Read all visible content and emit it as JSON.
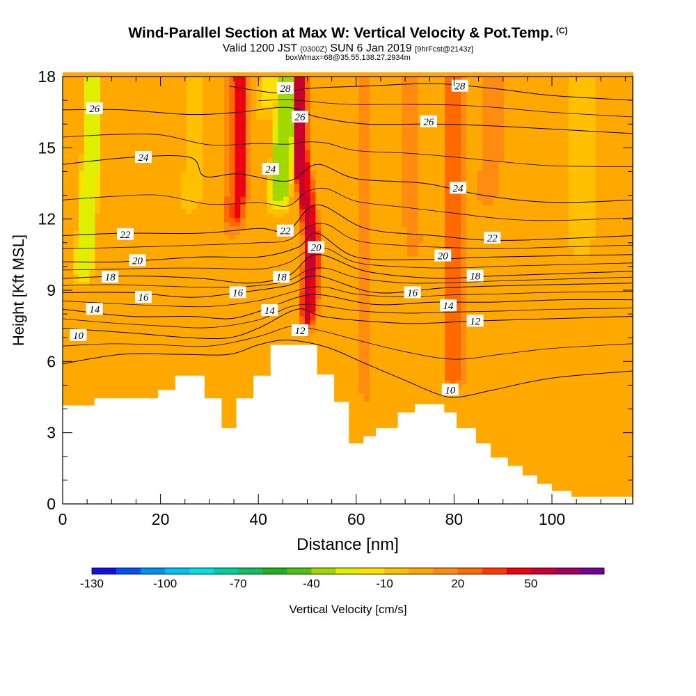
{
  "header": {
    "title": "Wind-Parallel Section at Max W: Vertical Velocity & Pot.Temp.",
    "title_mark": "(C)",
    "sub_main_a": "Valid 1200 JST",
    "sub_small_a": "(0300Z)",
    "sub_main_b": "SUN 6 Jan 2019",
    "sub_small_b": "[9hrFcst@2143z]",
    "sub_line2": "boxWmax=68@35.55,138.27,2934m"
  },
  "chart_data": {
    "type": "heatmap",
    "xlabel": "Distance [nm]",
    "ylabel": "Height [Kft MSL]",
    "xlim": [
      0,
      116.5
    ],
    "ylim": [
      0,
      18
    ],
    "x_ticks": [
      0,
      20,
      40,
      60,
      80,
      100
    ],
    "y_ticks": [
      0,
      3,
      6,
      9,
      12,
      15,
      18
    ],
    "colorbar": {
      "label": "Vertical Velocity [cm/s]",
      "tick_labels": [
        "-130",
        "-100",
        "-70",
        "-40",
        "-10",
        "20",
        "50"
      ],
      "tick_values": [
        -130,
        -100,
        -70,
        -40,
        -10,
        20,
        50
      ],
      "levels": [
        -130,
        -120,
        -110,
        -100,
        -90,
        -80,
        -70,
        -60,
        -50,
        -40,
        -30,
        -20,
        -10,
        0,
        10,
        20,
        30,
        40,
        50,
        60,
        70
      ],
      "colors": [
        "#1010e0",
        "#0050f0",
        "#0090f0",
        "#00c0f0",
        "#00e0e0",
        "#00d0a0",
        "#10c060",
        "#20b020",
        "#50c010",
        "#a0d800",
        "#e0ee00",
        "#ffe000",
        "#ffc000",
        "#ffa800",
        "#ff8c10",
        "#ff6a00",
        "#ff3a00",
        "#ee0010",
        "#c80030",
        "#a00060",
        "#70009a"
      ]
    },
    "background_value": 5,
    "features": [
      {
        "type": "band",
        "points": [
          [
            35,
            11.2,
            18
          ],
          [
            36,
            13,
            18
          ]
        ],
        "value": 40,
        "halfwidth": 1.6
      },
      {
        "type": "band",
        "points": [
          [
            34.5,
            11,
            16
          ],
          [
            35.5,
            13,
            18
          ]
        ],
        "value": 25,
        "halfwidth": 2.8
      },
      {
        "type": "band",
        "points": [
          [
            49.5,
            7,
            12
          ],
          [
            51,
            11,
            18
          ],
          [
            48.5,
            14,
            18
          ]
        ],
        "value": 55,
        "halfwidth": 1.2
      },
      {
        "type": "band",
        "points": [
          [
            50,
            7,
            12
          ],
          [
            51,
            11,
            18
          ],
          [
            48.5,
            15,
            18
          ]
        ],
        "value": 40,
        "halfwidth": 2.2
      },
      {
        "type": "band",
        "points": [
          [
            44,
            12,
            17
          ],
          [
            45,
            15,
            18
          ],
          [
            46,
            17.5,
            18
          ]
        ],
        "value": -35,
        "halfwidth": 2.6
      },
      {
        "type": "band",
        "points": [
          [
            41,
            16,
            18
          ],
          [
            43,
            18,
            18
          ]
        ],
        "value": -15,
        "halfwidth": 3
      },
      {
        "type": "band",
        "points": [
          [
            4,
            9,
            14
          ],
          [
            5,
            12,
            16
          ],
          [
            6,
            15,
            18
          ]
        ],
        "value": -30,
        "halfwidth": 2.2
      },
      {
        "type": "band",
        "points": [
          [
            26,
            12,
            14
          ],
          [
            27,
            15,
            18
          ]
        ],
        "value": -10,
        "halfwidth": 2.2
      },
      {
        "type": "band",
        "points": [
          [
            78,
            4.5,
            14
          ],
          [
            80,
            5,
            16
          ]
        ],
        "value": 28,
        "halfwidth": 2.5
      },
      {
        "type": "band",
        "points": [
          [
            72,
            10,
            15
          ],
          [
            71,
            13,
            16
          ]
        ],
        "value": 15,
        "halfwidth": 2
      },
      {
        "type": "band",
        "points": [
          [
            60,
            3.5,
            10
          ],
          [
            62,
            4,
            12
          ]
        ],
        "value": 10,
        "halfwidth": 2
      },
      {
        "type": "band",
        "points": [
          [
            86,
            12,
            14
          ],
          [
            88,
            15,
            18
          ]
        ],
        "value": 12,
        "halfwidth": 3
      },
      {
        "type": "band",
        "points": [
          [
            104,
            10,
            6
          ],
          [
            106,
            7,
            12
          ]
        ],
        "value": -5,
        "halfwidth": 3
      }
    ],
    "terrain": {
      "distance": [
        0,
        6.5,
        19.5,
        23,
        29,
        32.5,
        35.5,
        39,
        42.5,
        52,
        55.5,
        58.5,
        61.5,
        64,
        68.5,
        72,
        78,
        80.5,
        84.5,
        87.5,
        91,
        94,
        97,
        100,
        104,
        106.5,
        116.5
      ],
      "height_kft": [
        4.15,
        4.45,
        4.8,
        5.4,
        4.45,
        3.2,
        4.45,
        5.4,
        6.7,
        5.45,
        4.3,
        2.55,
        2.85,
        3.2,
        3.85,
        4.2,
        3.85,
        3.2,
        2.55,
        1.95,
        1.6,
        1.2,
        0.85,
        0.55,
        0.3,
        0.3,
        0.3
      ]
    },
    "pot_temp_contours": [
      {
        "value": 10,
        "pts": [
          [
            0,
            5.9
          ],
          [
            12,
            6.3
          ],
          [
            24,
            6.3
          ],
          [
            34,
            6.3
          ],
          [
            40,
            6.7
          ],
          [
            46,
            6.9
          ],
          [
            54,
            6.6
          ],
          [
            62,
            5.9
          ],
          [
            70,
            5.2
          ],
          [
            77,
            4.6
          ],
          [
            81,
            4.5
          ],
          [
            88,
            4.8
          ],
          [
            100,
            5.3
          ],
          [
            116.5,
            5.6
          ]
        ]
      },
      {
        "value": 12,
        "pts": [
          [
            0,
            7.4
          ],
          [
            14,
            7.2
          ],
          [
            26,
            7.0
          ],
          [
            34,
            7.0
          ],
          [
            40,
            7.4
          ],
          [
            48,
            8.2
          ],
          [
            53,
            7.9
          ],
          [
            62,
            7.7
          ],
          [
            72,
            7.6
          ],
          [
            84,
            7.7
          ],
          [
            100,
            7.8
          ],
          [
            116.5,
            7.9
          ]
        ]
      },
      {
        "value": 14,
        "pts": [
          [
            0,
            8.2
          ],
          [
            14,
            7.9
          ],
          [
            26,
            7.9
          ],
          [
            34,
            7.8
          ],
          [
            40,
            8.1
          ],
          [
            48,
            8.7
          ],
          [
            53,
            8.8
          ],
          [
            64,
            8.4
          ],
          [
            76,
            8.5
          ],
          [
            88,
            8.5
          ],
          [
            102,
            8.6
          ],
          [
            116.5,
            8.6
          ]
        ]
      },
      {
        "value": 16,
        "pts": [
          [
            0,
            8.9
          ],
          [
            14,
            8.9
          ],
          [
            26,
            8.7
          ],
          [
            36,
            8.9
          ],
          [
            46,
            9.2
          ],
          [
            52,
            9.6
          ],
          [
            64,
            8.9
          ],
          [
            78,
            9.1
          ],
          [
            92,
            9.2
          ],
          [
            116.5,
            9.3
          ]
        ]
      },
      {
        "value": 18,
        "pts": [
          [
            0,
            9.5
          ],
          [
            14,
            9.6
          ],
          [
            28,
            9.5
          ],
          [
            38,
            9.3
          ],
          [
            46,
            9.6
          ],
          [
            52,
            10.5
          ],
          [
            62,
            9.8
          ],
          [
            76,
            9.5
          ],
          [
            88,
            9.6
          ],
          [
            116.5,
            9.8
          ]
        ]
      },
      {
        "value": 20,
        "pts": [
          [
            0,
            10.2
          ],
          [
            12,
            10.2
          ],
          [
            28,
            10.4
          ],
          [
            40,
            10.4
          ],
          [
            48,
            10.8
          ],
          [
            52,
            11.4
          ],
          [
            60,
            10.4
          ],
          [
            74,
            10.3
          ],
          [
            88,
            10.4
          ],
          [
            116.5,
            10.5
          ]
        ]
      },
      {
        "value": 22,
        "pts": [
          [
            0,
            11.3
          ],
          [
            12,
            11.4
          ],
          [
            28,
            11.4
          ],
          [
            40,
            11.6
          ],
          [
            46,
            11.5
          ],
          [
            52,
            12.6
          ],
          [
            62,
            11.6
          ],
          [
            76,
            11.3
          ],
          [
            90,
            11.1
          ],
          [
            116.5,
            11.3
          ]
        ]
      },
      {
        "value": 24,
        "pts": [
          [
            0,
            14.3
          ],
          [
            14,
            14.6
          ],
          [
            26,
            14.6
          ],
          [
            29,
            13.8
          ],
          [
            36,
            13.9
          ],
          [
            46,
            13.6
          ],
          [
            52,
            14.3
          ],
          [
            60,
            13.7
          ],
          [
            74,
            13.5
          ],
          [
            86,
            13.0
          ],
          [
            100,
            12.7
          ],
          [
            116.5,
            12.8
          ]
        ]
      },
      {
        "value": 26,
        "pts": [
          [
            0,
            16.6
          ],
          [
            12,
            16.6
          ],
          [
            26,
            16.4
          ],
          [
            36,
            16.5
          ],
          [
            46,
            16.7
          ],
          [
            52,
            16.3
          ],
          [
            62,
            16.0
          ],
          [
            76,
            16.0
          ],
          [
            90,
            15.9
          ],
          [
            116.5,
            15.6
          ]
        ]
      },
      {
        "value": 28,
        "pts": [
          [
            34,
            17.6
          ],
          [
            40,
            17.4
          ],
          [
            45,
            17.3
          ],
          [
            50,
            17.5
          ],
          [
            62,
            17.6
          ],
          [
            76,
            17.7
          ],
          [
            88,
            17.5
          ],
          [
            100,
            17.2
          ],
          [
            116.5,
            17.0
          ]
        ]
      }
    ],
    "contour_labels": [
      {
        "text": "26",
        "x": 6.5,
        "y": 16.65
      },
      {
        "text": "24",
        "x": 16.5,
        "y": 14.6
      },
      {
        "text": "22",
        "x": 12.8,
        "y": 11.35
      },
      {
        "text": "20",
        "x": 15.3,
        "y": 10.25
      },
      {
        "text": "18",
        "x": 9.7,
        "y": 9.55
      },
      {
        "text": "16",
        "x": 16.5,
        "y": 8.7
      },
      {
        "text": "14",
        "x": 6.5,
        "y": 8.2
      },
      {
        "text": "10",
        "x": 3.2,
        "y": 7.1
      },
      {
        "text": "28",
        "x": 45.5,
        "y": 17.5
      },
      {
        "text": "26",
        "x": 48.5,
        "y": 16.3
      },
      {
        "text": "24",
        "x": 42.5,
        "y": 14.1
      },
      {
        "text": "22",
        "x": 45.5,
        "y": 11.5
      },
      {
        "text": "20",
        "x": 51.8,
        "y": 10.8
      },
      {
        "text": "18",
        "x": 44.7,
        "y": 9.55
      },
      {
        "text": "16",
        "x": 35.8,
        "y": 8.9
      },
      {
        "text": "14",
        "x": 42.3,
        "y": 8.15
      },
      {
        "text": "12",
        "x": 48.5,
        "y": 7.3
      },
      {
        "text": "28",
        "x": 81.2,
        "y": 17.6
      },
      {
        "text": "26",
        "x": 74.8,
        "y": 16.1
      },
      {
        "text": "24",
        "x": 80.8,
        "y": 13.3
      },
      {
        "text": "22",
        "x": 87.8,
        "y": 11.2
      },
      {
        "text": "20",
        "x": 77.7,
        "y": 10.45
      },
      {
        "text": "18",
        "x": 84.3,
        "y": 9.6
      },
      {
        "text": "16",
        "x": 71.5,
        "y": 8.9
      },
      {
        "text": "14",
        "x": 78.8,
        "y": 8.35
      },
      {
        "text": "12",
        "x": 84.3,
        "y": 7.7
      },
      {
        "text": "10",
        "x": 79.2,
        "y": 4.8
      }
    ]
  }
}
